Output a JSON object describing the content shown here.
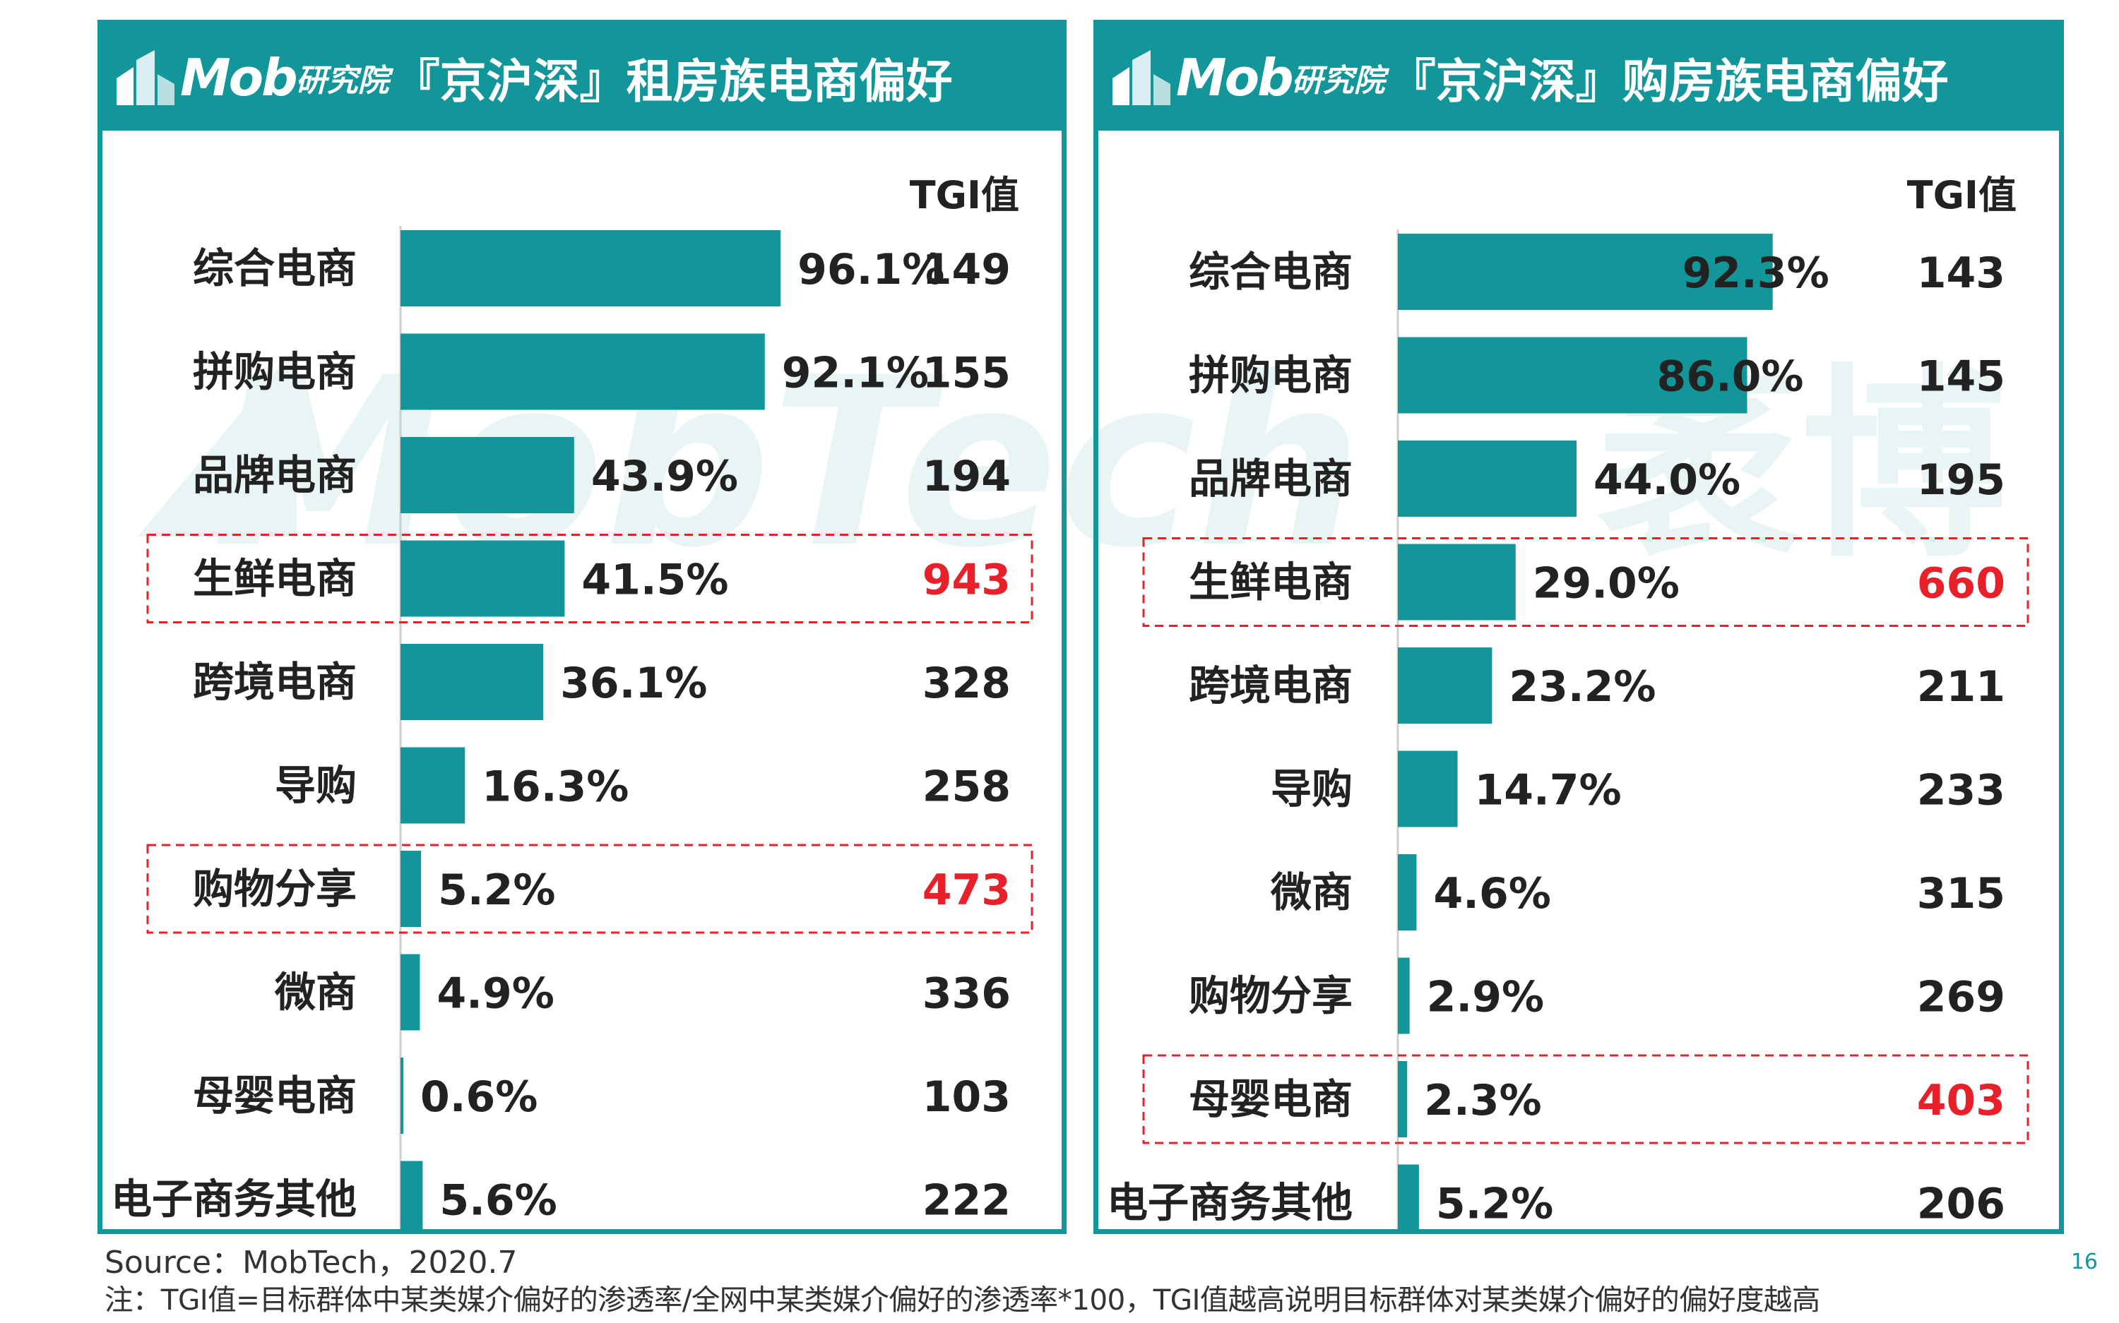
{
  "brand": {
    "logo_text": "Mob",
    "logo_suffix": "研究院",
    "watermark_text": "MobTech",
    "watermark_suffix": "袤博"
  },
  "chart_data": [
    {
      "type": "bar",
      "orientation": "horizontal",
      "title": "『京沪深』租房族电商偏好",
      "tgi_header": "TGI值",
      "categories": [
        "综合电商",
        "拼购电商",
        "品牌电商",
        "生鲜电商",
        "跨境电商",
        "导购",
        "购物分享",
        "微商",
        "母婴电商",
        "电子商务其他"
      ],
      "values": [
        96.1,
        92.1,
        43.9,
        41.5,
        36.1,
        16.3,
        5.2,
        4.9,
        0.6,
        5.6
      ],
      "value_labels": [
        "96.1%",
        "92.1%",
        "43.9%",
        "41.5%",
        "36.1%",
        "16.3%",
        "5.2%",
        "4.9%",
        "0.6%",
        "5.6%"
      ],
      "tgi": [
        "149",
        "155",
        "194",
        "943",
        "328",
        "258",
        "473",
        "336",
        "103",
        "222"
      ],
      "highlighted": [
        "生鲜电商",
        "购物分享"
      ],
      "xlim": [
        0,
        100
      ],
      "bar_color": "#13969a",
      "highlight_color": "#e8202a"
    },
    {
      "type": "bar",
      "orientation": "horizontal",
      "title": "『京沪深』购房族电商偏好",
      "tgi_header": "TGI值",
      "categories": [
        "综合电商",
        "拼购电商",
        "品牌电商",
        "生鲜电商",
        "跨境电商",
        "导购",
        "微商",
        "购物分享",
        "母婴电商",
        "电子商务其他"
      ],
      "values": [
        92.3,
        86.0,
        44.0,
        29.0,
        23.2,
        14.7,
        4.6,
        2.9,
        2.3,
        5.2
      ],
      "value_labels": [
        "92.3%",
        "86.0%",
        "44.0%",
        "29.0%",
        "23.2%",
        "14.7%",
        "4.6%",
        "2.9%",
        "2.3%",
        "5.2%"
      ],
      "tgi": [
        "143",
        "145",
        "195",
        "660",
        "211",
        "233",
        "315",
        "269",
        "403",
        "206"
      ],
      "highlighted": [
        "生鲜电商",
        "母婴电商"
      ],
      "xlim": [
        0,
        100
      ],
      "bar_color": "#13969a",
      "highlight_color": "#e8202a"
    }
  ],
  "footer": {
    "source": "Source：MobTech，2020.7",
    "note": "注：TGI值=目标群体中某类媒介偏好的渗透率/全网中某类媒介偏好的渗透率*100，TGI值越高说明目标群体对某类媒介偏好的偏好度越高",
    "page_number": "16"
  }
}
